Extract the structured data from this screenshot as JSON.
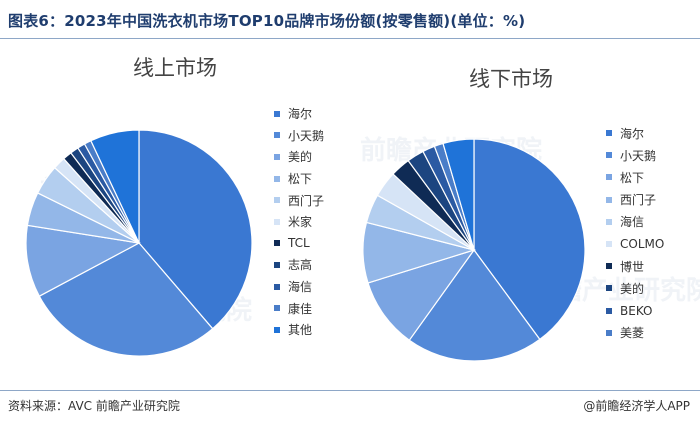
{
  "page": {
    "title": "图表6：2023年中国洗衣机市场TOP10品牌市场份额(按零售额)(单位：%)",
    "source": "资料来源：AVC 前瞻产业研究院",
    "credit": "@前瞻经济学人APP",
    "watermark": "前瞻产业研究院"
  },
  "chart_data": [
    {
      "type": "pie",
      "title": "线上市场",
      "categories": [
        "海尔",
        "小天鹅",
        "美的",
        "松下",
        "西门子",
        "米家",
        "TCL",
        "志高",
        "海信",
        "康佳",
        "其他"
      ],
      "values": [
        38.7,
        28.5,
        10.3,
        4.8,
        4.3,
        1.8,
        1.3,
        1.2,
        1.1,
        1.0,
        7.0
      ],
      "colors": [
        "#3a78d2",
        "#5389d8",
        "#7aa4e2",
        "#93b7e8",
        "#b3ceef",
        "#d6e4f6",
        "#0f2b55",
        "#1c4580",
        "#2b5aa3",
        "#4a7dc8",
        "#1f73d8"
      ],
      "start_angle_deg": 0,
      "direction": "clockwise",
      "legend_position": "right"
    },
    {
      "type": "pie",
      "title": "线下市场",
      "categories": [
        "海尔",
        "小天鹅",
        "松下",
        "西门子",
        "海信",
        "COLMO",
        "博世",
        "美的",
        "BEKO",
        "美菱"
      ],
      "values": [
        39.9,
        20.0,
        10.3,
        8.8,
        4.2,
        3.8,
        2.9,
        2.5,
        1.8,
        1.3
      ],
      "colors": [
        "#3a78d2",
        "#5389d8",
        "#7aa4e2",
        "#93b7e8",
        "#b3ceef",
        "#d6e4f6",
        "#0f2b55",
        "#1c4580",
        "#2b5aa3",
        "#4a7dc8"
      ],
      "remainder_label": "",
      "remainder_color": "#1f73d8",
      "start_angle_deg": 0,
      "direction": "clockwise",
      "legend_position": "right"
    }
  ]
}
